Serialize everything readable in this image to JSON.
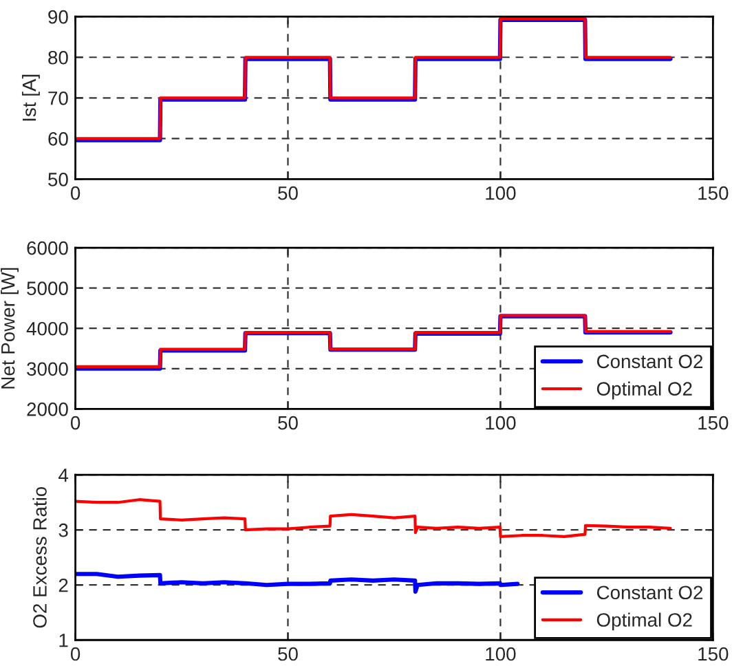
{
  "chart_data": [
    {
      "type": "line",
      "ylabel": "Ist [A]",
      "xlim": [
        0,
        150
      ],
      "ylim": [
        50,
        90
      ],
      "xticks": [
        0,
        50,
        100,
        150
      ],
      "yticks": [
        50,
        60,
        70,
        80,
        90
      ],
      "grid": true,
      "legend": false,
      "x": [
        0,
        10,
        19.9,
        20,
        30,
        39.9,
        40,
        50,
        59.9,
        60,
        70,
        79.9,
        80,
        90,
        99.9,
        100,
        110,
        119.9,
        120,
        130,
        140
      ],
      "series": [
        {
          "color": "#0000ff",
          "values": [
            59.6,
            59.6,
            59.6,
            69.6,
            69.6,
            69.6,
            79.6,
            79.6,
            79.6,
            69.6,
            69.6,
            69.6,
            79.6,
            79.6,
            79.6,
            89.2,
            89.2,
            89.2,
            79.6,
            79.6,
            79.6
          ]
        },
        {
          "color": "#ff0000",
          "values": [
            60,
            60,
            60,
            70,
            70,
            70,
            80,
            80,
            80,
            70,
            70,
            70,
            80,
            80,
            80,
            89.5,
            89.5,
            89.5,
            80,
            80,
            80
          ]
        }
      ]
    },
    {
      "type": "line",
      "ylabel": "Net Power [W]",
      "xlim": [
        0,
        150
      ],
      "ylim": [
        2000,
        6000
      ],
      "xticks": [
        0,
        50,
        100,
        150
      ],
      "yticks": [
        2000,
        3000,
        4000,
        5000,
        6000
      ],
      "grid": true,
      "legend": "bottom right",
      "x": [
        0,
        10,
        19.9,
        20,
        30,
        39.9,
        40,
        50,
        59.9,
        60,
        70,
        79.9,
        80,
        90,
        99.9,
        100,
        110,
        119.9,
        120,
        130,
        140
      ],
      "series": [
        {
          "name": "Constant O2",
          "color": "#0000ff",
          "values": [
            3000,
            3000,
            3000,
            3450,
            3450,
            3450,
            3880,
            3880,
            3880,
            3470,
            3470,
            3470,
            3870,
            3870,
            3870,
            4300,
            4300,
            4300,
            3900,
            3900,
            3900
          ]
        },
        {
          "name": "Optimal O2",
          "color": "#ff0000",
          "values": [
            3050,
            3050,
            3050,
            3480,
            3480,
            3480,
            3900,
            3900,
            3900,
            3480,
            3480,
            3480,
            3900,
            3900,
            3900,
            4320,
            4320,
            4320,
            3920,
            3920,
            3920
          ]
        }
      ]
    },
    {
      "type": "line",
      "ylabel": "O2 Excess Ratio",
      "xlim": [
        0,
        150
      ],
      "ylim": [
        1,
        4
      ],
      "xticks": [
        0,
        50,
        100,
        150
      ],
      "yticks": [
        1,
        2,
        3,
        4
      ],
      "grid": true,
      "legend": "bottom right",
      "series": [
        {
          "name": "Constant O2",
          "color": "#0000ff",
          "x": [
            0,
            5,
            10,
            15,
            19.9,
            20,
            25,
            30,
            35,
            39.9,
            40,
            45,
            50,
            55,
            59.9,
            60,
            65,
            70,
            75,
            79.9,
            80,
            80.5,
            85,
            90,
            95,
            99.9,
            100,
            104
          ],
          "values": [
            2.2,
            2.2,
            2.15,
            2.17,
            2.18,
            2.03,
            2.05,
            2.03,
            2.05,
            2.03,
            2.03,
            2.0,
            2.02,
            2.02,
            2.03,
            2.08,
            2.1,
            2.08,
            2.1,
            2.08,
            1.88,
            2.0,
            2.03,
            2.03,
            2.02,
            2.03,
            2.0,
            2.02
          ]
        },
        {
          "name": "Optimal O2",
          "color": "#ff0000",
          "x": [
            0,
            5,
            10,
            15,
            19.9,
            20,
            25,
            30,
            35,
            39.9,
            40,
            45,
            50,
            55,
            59.9,
            60,
            65,
            70,
            75,
            79.9,
            80,
            80.5,
            85,
            90,
            95,
            99.9,
            100,
            105,
            110,
            115,
            119.9,
            120,
            125,
            130,
            135,
            140
          ],
          "values": [
            3.52,
            3.5,
            3.5,
            3.55,
            3.52,
            3.2,
            3.18,
            3.2,
            3.22,
            3.2,
            3.0,
            3.02,
            3.02,
            3.05,
            3.07,
            3.25,
            3.28,
            3.25,
            3.22,
            3.25,
            2.95,
            3.05,
            3.03,
            3.05,
            3.03,
            3.05,
            2.88,
            2.9,
            2.9,
            2.88,
            2.92,
            3.08,
            3.07,
            3.05,
            3.05,
            3.03
          ]
        }
      ]
    }
  ]
}
